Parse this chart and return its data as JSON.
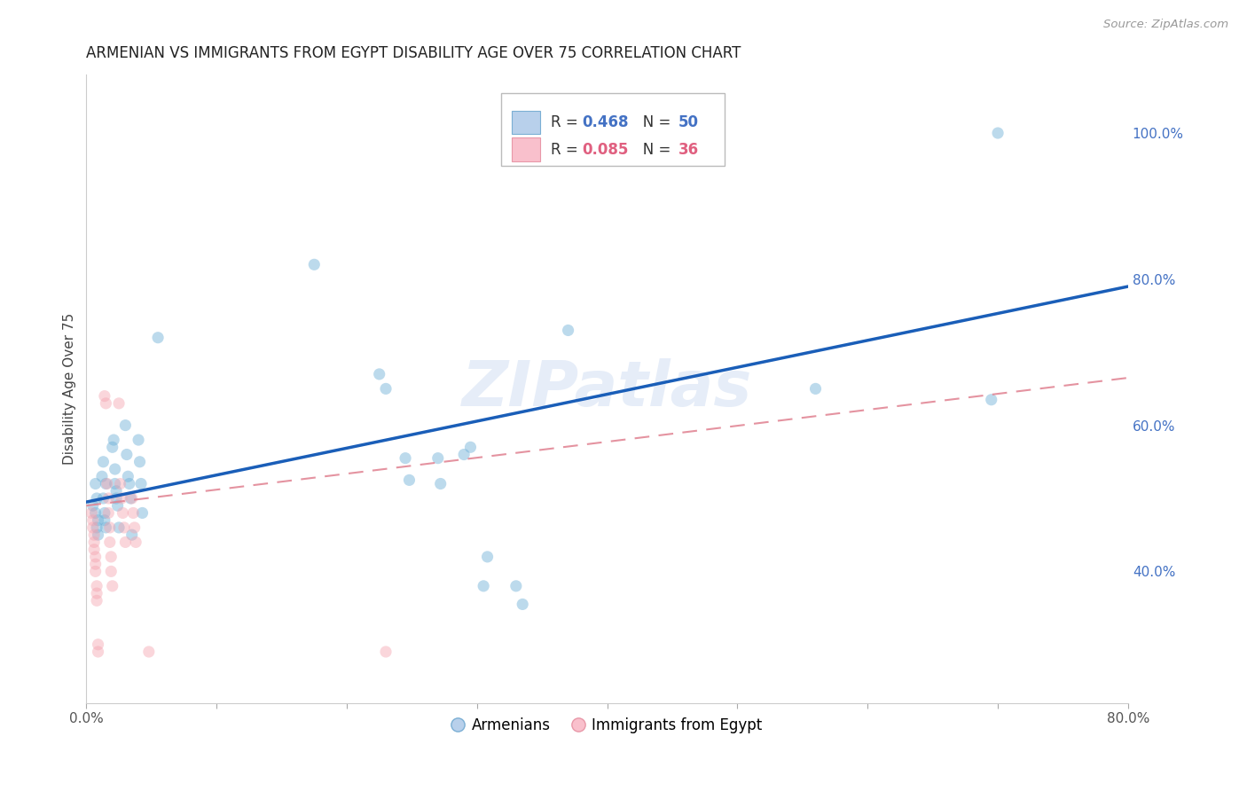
{
  "title": "ARMENIAN VS IMMIGRANTS FROM EGYPT DISABILITY AGE OVER 75 CORRELATION CHART",
  "source": "Source: ZipAtlas.com",
  "ylabel": "Disability Age Over 75",
  "xlim": [
    0.0,
    0.8
  ],
  "ylim": [
    0.22,
    1.08
  ],
  "x_ticks": [
    0.0,
    0.1,
    0.2,
    0.3,
    0.4,
    0.5,
    0.6,
    0.7,
    0.8
  ],
  "x_tick_labels": [
    "0.0%",
    "",
    "",
    "",
    "",
    "",
    "",
    "",
    "80.0%"
  ],
  "y_ticks": [
    0.4,
    0.6,
    0.8,
    1.0
  ],
  "y_tick_labels": [
    "40.0%",
    "60.0%",
    "80.0%",
    "100.0%"
  ],
  "watermark": "ZIPatlas",
  "blue_scatter": [
    [
      0.005,
      0.49
    ],
    [
      0.007,
      0.52
    ],
    [
      0.007,
      0.48
    ],
    [
      0.008,
      0.5
    ],
    [
      0.008,
      0.46
    ],
    [
      0.009,
      0.45
    ],
    [
      0.009,
      0.47
    ],
    [
      0.012,
      0.53
    ],
    [
      0.013,
      0.55
    ],
    [
      0.013,
      0.5
    ],
    [
      0.014,
      0.48
    ],
    [
      0.014,
      0.47
    ],
    [
      0.015,
      0.52
    ],
    [
      0.015,
      0.46
    ],
    [
      0.02,
      0.57
    ],
    [
      0.021,
      0.58
    ],
    [
      0.022,
      0.54
    ],
    [
      0.022,
      0.52
    ],
    [
      0.023,
      0.51
    ],
    [
      0.023,
      0.5
    ],
    [
      0.024,
      0.49
    ],
    [
      0.025,
      0.46
    ],
    [
      0.03,
      0.6
    ],
    [
      0.031,
      0.56
    ],
    [
      0.032,
      0.53
    ],
    [
      0.033,
      0.52
    ],
    [
      0.034,
      0.5
    ],
    [
      0.035,
      0.45
    ],
    [
      0.04,
      0.58
    ],
    [
      0.041,
      0.55
    ],
    [
      0.042,
      0.52
    ],
    [
      0.043,
      0.48
    ],
    [
      0.055,
      0.72
    ],
    [
      0.175,
      0.82
    ],
    [
      0.225,
      0.67
    ],
    [
      0.23,
      0.65
    ],
    [
      0.245,
      0.555
    ],
    [
      0.248,
      0.525
    ],
    [
      0.27,
      0.555
    ],
    [
      0.272,
      0.52
    ],
    [
      0.29,
      0.56
    ],
    [
      0.295,
      0.57
    ],
    [
      0.305,
      0.38
    ],
    [
      0.308,
      0.42
    ],
    [
      0.33,
      0.38
    ],
    [
      0.335,
      0.355
    ],
    [
      0.37,
      0.73
    ],
    [
      0.56,
      0.65
    ],
    [
      0.695,
      0.635
    ],
    [
      0.7,
      1.0
    ]
  ],
  "pink_scatter": [
    [
      0.004,
      0.48
    ],
    [
      0.005,
      0.47
    ],
    [
      0.005,
      0.46
    ],
    [
      0.006,
      0.45
    ],
    [
      0.006,
      0.44
    ],
    [
      0.006,
      0.43
    ],
    [
      0.007,
      0.42
    ],
    [
      0.007,
      0.41
    ],
    [
      0.007,
      0.4
    ],
    [
      0.008,
      0.38
    ],
    [
      0.008,
      0.37
    ],
    [
      0.008,
      0.36
    ],
    [
      0.009,
      0.3
    ],
    [
      0.009,
      0.29
    ],
    [
      0.014,
      0.64
    ],
    [
      0.015,
      0.63
    ],
    [
      0.016,
      0.52
    ],
    [
      0.017,
      0.5
    ],
    [
      0.017,
      0.48
    ],
    [
      0.018,
      0.46
    ],
    [
      0.018,
      0.44
    ],
    [
      0.019,
      0.42
    ],
    [
      0.019,
      0.4
    ],
    [
      0.02,
      0.38
    ],
    [
      0.025,
      0.63
    ],
    [
      0.026,
      0.52
    ],
    [
      0.027,
      0.5
    ],
    [
      0.028,
      0.48
    ],
    [
      0.029,
      0.46
    ],
    [
      0.03,
      0.44
    ],
    [
      0.035,
      0.5
    ],
    [
      0.036,
      0.48
    ],
    [
      0.037,
      0.46
    ],
    [
      0.038,
      0.44
    ],
    [
      0.048,
      0.29
    ],
    [
      0.23,
      0.29
    ]
  ],
  "blue_line_x": [
    0.0,
    0.8
  ],
  "blue_line_y": [
    0.495,
    0.79
  ],
  "pink_line_x": [
    0.0,
    0.8
  ],
  "pink_line_y": [
    0.49,
    0.665
  ],
  "background_color": "#ffffff",
  "grid_color": "#d0d0d0",
  "scatter_alpha": 0.45,
  "scatter_size": 90,
  "blue_scatter_color": "#6baed6",
  "pink_scatter_color": "#f4a4b0",
  "blue_line_color": "#1a5eb8",
  "pink_line_color": "#e08090"
}
